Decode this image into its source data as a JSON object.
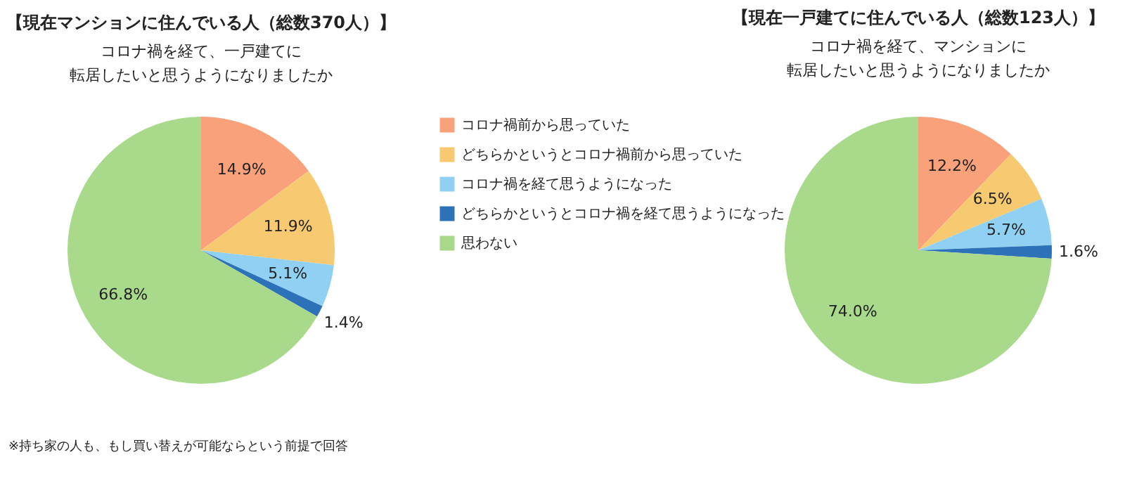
{
  "chart_data": [
    {
      "type": "pie",
      "title": "【現在マンションに住んでいる人（総数370人）】",
      "subtitle": "コロナ禍を経て、一戸建てに転居したいと思うようになりましたか",
      "categories": [
        "コロナ禍前から思っていた",
        "どちらかというとコロナ禍前から思っていた",
        "コロナ禍を経て思うようになった",
        "どちらかというとコロナ禍を経て思うようになった",
        "思わない"
      ],
      "values": [
        14.9,
        11.9,
        5.1,
        1.4,
        66.8
      ],
      "value_labels": [
        "14.9%",
        "11.9%",
        "5.1%",
        "1.4%",
        "66.8%"
      ],
      "colors": [
        "#f9a17b",
        "#f7c970",
        "#90d1f3",
        "#2d72b8",
        "#a9d98b"
      ],
      "legend": "right",
      "annotations": [
        "※持ち家の人も、もし買い替えが可能ならという前提で回答"
      ]
    },
    {
      "type": "pie",
      "title": "【現在一戸建てに住んでいる人（総数123人）】",
      "subtitle": "コロナ禍を経て、マンションに転居したいと思うようになりましたか",
      "categories": [
        null,
        null,
        null,
        null,
        null
      ],
      "values": [
        12.2,
        6.5,
        5.7,
        1.6,
        74.0
      ],
      "value_labels": [
        "12.2%",
        "6.5%",
        "5.7%",
        "1.6%",
        "74.0%"
      ],
      "colors": [
        "#f9a17b",
        "#f7c970",
        "#90d1f3",
        "#2d72b8",
        "#a9d98b"
      ]
    }
  ]
}
